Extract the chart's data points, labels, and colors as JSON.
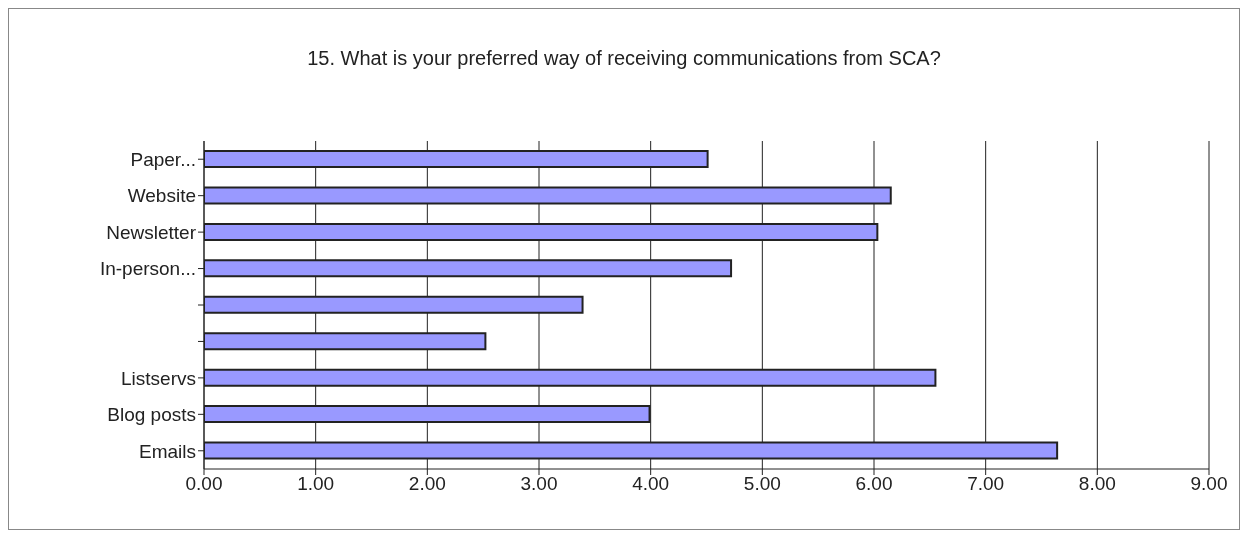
{
  "chart_data": {
    "type": "bar",
    "orientation": "horizontal",
    "title": "15. What is your preferred way of receiving communications from SCA?",
    "categories": [
      "Paper...",
      "Website",
      "Newsletter",
      "In-person...",
      null,
      null,
      "Listservs",
      "Blog posts",
      "Emails"
    ],
    "values": [
      4.51,
      6.15,
      6.03,
      4.72,
      3.39,
      2.52,
      6.55,
      3.99,
      7.64
    ],
    "color": "#9999ff",
    "xlim": [
      0,
      9
    ],
    "xticks": [
      {
        "value": 0,
        "label": "0.00"
      },
      {
        "value": 1,
        "label": "1.00"
      },
      {
        "value": 2,
        "label": "2.00"
      },
      {
        "value": 3,
        "label": "3.00"
      },
      {
        "value": 4,
        "label": "4.00"
      },
      {
        "value": 5,
        "label": "5.00"
      },
      {
        "value": 6,
        "label": "6.00"
      },
      {
        "value": 7,
        "label": "7.00"
      },
      {
        "value": 8,
        "label": "8.00"
      },
      {
        "value": 9,
        "label": "9.00"
      }
    ],
    "grid": "x",
    "legend": false
  }
}
